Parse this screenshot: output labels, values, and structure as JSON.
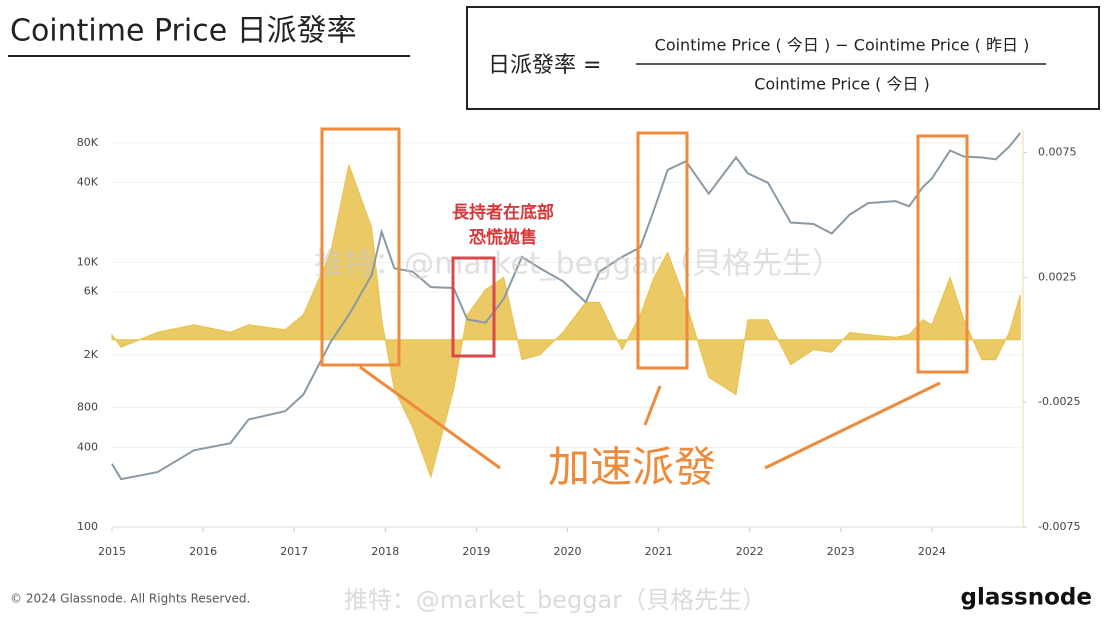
{
  "title": "Cointime Price 日派發率",
  "formula": {
    "lhs": "日派發率 =",
    "numerator": "Cointime Price ( 今日 ) − Cointime Price ( 昨日 )",
    "denominator": "Cointime Price ( 今日 )"
  },
  "annotations": {
    "red_label": [
      "長持者在底部",
      "恐慌拋售"
    ],
    "orange_label": "加速派發"
  },
  "watermark": "推特：@market_beggar（貝格先生）",
  "footer": {
    "copyright": "© 2024 Glassnode. All Rights Reserved.",
    "brand": "glassnode"
  },
  "chart_data": {
    "type": "line",
    "log_y": true,
    "grid": true,
    "xlim": [
      2015,
      2025
    ],
    "xticks": [
      2015,
      2016,
      2017,
      2018,
      2019,
      2020,
      2021,
      2022,
      2023,
      2024
    ],
    "ylim": [
      100,
      100000
    ],
    "yticks": [
      100,
      400,
      800,
      {
        "value": 2000,
        "label": "2K"
      },
      {
        "value": 6000,
        "label": "6K"
      },
      {
        "value": 10000,
        "label": "10K"
      },
      {
        "value": 40000,
        "label": "40K"
      },
      {
        "value": 80000,
        "label": "80K"
      }
    ],
    "y2lim": [
      -0.0075,
      0.0084
    ],
    "y2ticks": [
      -0.0075,
      -0.0025,
      0.0025,
      0.0075
    ],
    "x": [
      2015.0,
      2015.1,
      2015.5,
      2015.9,
      2016.3,
      2016.5,
      2016.9,
      2017.1,
      2017.4,
      2017.6,
      2017.85,
      2017.96,
      2018.1,
      2018.3,
      2018.5,
      2018.75,
      2018.9,
      2019.1,
      2019.3,
      2019.5,
      2019.7,
      2019.95,
      2020.2,
      2020.35,
      2020.6,
      2020.8,
      2020.95,
      2021.1,
      2021.3,
      2021.55,
      2021.85,
      2021.98,
      2022.2,
      2022.45,
      2022.7,
      2022.9,
      2023.1,
      2023.3,
      2023.6,
      2023.75,
      2023.9,
      2024.0,
      2024.2,
      2024.35,
      2024.55,
      2024.7,
      2024.85,
      2024.97
    ],
    "series": [
      {
        "style": "area",
        "axis": "y2",
        "color": "#e8c04a",
        "values": [
          0.0002,
          -0.0003,
          0.0003,
          0.0006,
          0.0003,
          0.0006,
          0.0004,
          0.001,
          0.0035,
          0.007,
          0.0045,
          0.0008,
          -0.002,
          -0.0035,
          -0.0055,
          -0.002,
          0.001,
          0.002,
          0.0025,
          -0.0008,
          -0.0006,
          0.0003,
          0.0015,
          0.0015,
          -0.0004,
          0.001,
          0.0025,
          0.0035,
          0.0015,
          -0.0015,
          -0.0022,
          0.0008,
          0.0008,
          -0.001,
          -0.0004,
          -0.0005,
          0.0003,
          0.0002,
          0.0001,
          0.0002,
          0.0008,
          0.0006,
          0.0025,
          0.0008,
          -0.0008,
          -0.0008,
          0.0003,
          0.0018
        ]
      },
      {
        "style": "line",
        "axis": "y",
        "color": "#8a9aa4",
        "values": [
          300,
          230,
          260,
          380,
          430,
          650,
          750,
          1000,
          2500,
          4000,
          8000,
          17000,
          9000,
          8500,
          6500,
          6400,
          3700,
          3500,
          5300,
          11000,
          9000,
          7200,
          5000,
          8500,
          11000,
          13000,
          25000,
          50000,
          58000,
          33000,
          62000,
          47000,
          40000,
          20000,
          19500,
          16500,
          23000,
          28000,
          29000,
          26500,
          37000,
          43000,
          70000,
          63000,
          62000,
          60000,
          75000,
          95000
        ]
      }
    ]
  }
}
